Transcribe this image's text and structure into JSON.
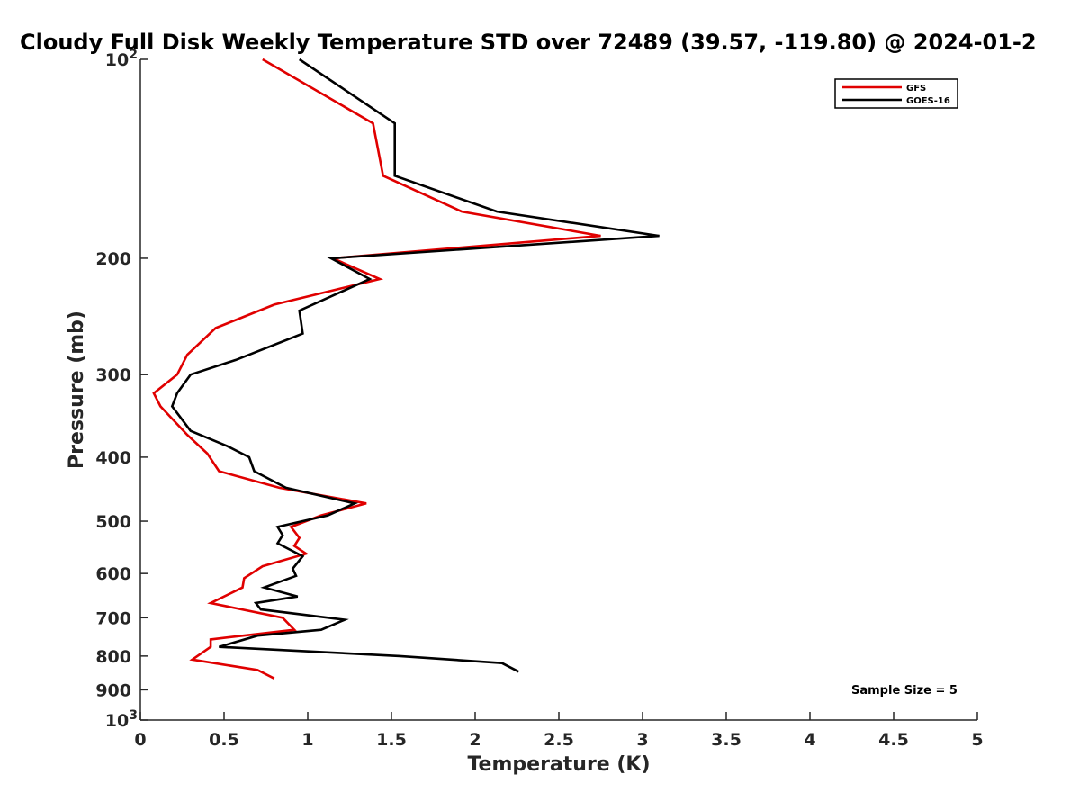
{
  "chart_data": {
    "type": "line",
    "title": "Cloudy Full Disk Weekly Temperature STD over 72489 (39.57, -119.80) @ 2024-01-2",
    "xlabel": "Temperature (K)",
    "ylabel": "Pressure (mb)",
    "xlim": [
      0,
      5
    ],
    "ylim": [
      100,
      1000
    ],
    "y_scale": "log",
    "y_reversed": true,
    "grid": false,
    "legend_position": "top-right",
    "x_ticks": [
      "0",
      "0.5",
      "1",
      "1.5",
      "2",
      "2.5",
      "3",
      "3.5",
      "4",
      "4.5",
      "5"
    ],
    "y_ticks": [
      {
        "value": 100,
        "label": "10",
        "sup": "2"
      },
      {
        "value": 200,
        "label": "200",
        "sup": ""
      },
      {
        "value": 300,
        "label": "300",
        "sup": ""
      },
      {
        "value": 400,
        "label": "400",
        "sup": ""
      },
      {
        "value": 500,
        "label": "500",
        "sup": ""
      },
      {
        "value": 600,
        "label": "600",
        "sup": ""
      },
      {
        "value": 700,
        "label": "700",
        "sup": ""
      },
      {
        "value": 800,
        "label": "800",
        "sup": ""
      },
      {
        "value": 900,
        "label": "900",
        "sup": ""
      },
      {
        "value": 1000,
        "label": "10",
        "sup": "3"
      }
    ],
    "series": [
      {
        "name": "GFS",
        "color": "#e00000",
        "points": [
          [
            0.73,
            100
          ],
          [
            1.39,
            125
          ],
          [
            1.45,
            150
          ],
          [
            1.92,
            170
          ],
          [
            2.75,
            185
          ],
          [
            1.15,
            200
          ],
          [
            1.43,
            215
          ],
          [
            0.8,
            235
          ],
          [
            0.45,
            255
          ],
          [
            0.28,
            280
          ],
          [
            0.22,
            300
          ],
          [
            0.08,
            320
          ],
          [
            0.12,
            335
          ],
          [
            0.28,
            370
          ],
          [
            0.4,
            395
          ],
          [
            0.47,
            420
          ],
          [
            0.83,
            445
          ],
          [
            1.35,
            470
          ],
          [
            1.08,
            490
          ],
          [
            0.9,
            510
          ],
          [
            0.95,
            530
          ],
          [
            0.92,
            545
          ],
          [
            0.99,
            560
          ],
          [
            0.73,
            585
          ],
          [
            0.62,
            610
          ],
          [
            0.61,
            630
          ],
          [
            0.42,
            665
          ],
          [
            0.85,
            700
          ],
          [
            0.92,
            730
          ],
          [
            0.42,
            755
          ],
          [
            0.42,
            775
          ],
          [
            0.31,
            810
          ],
          [
            0.7,
            840
          ],
          [
            0.8,
            865
          ]
        ]
      },
      {
        "name": "GOES-16",
        "color": "#000000",
        "points": [
          [
            0.95,
            100
          ],
          [
            1.52,
            125
          ],
          [
            1.52,
            150
          ],
          [
            2.13,
            170
          ],
          [
            3.1,
            185
          ],
          [
            1.14,
            200
          ],
          [
            1.37,
            215
          ],
          [
            0.95,
            240
          ],
          [
            0.97,
            260
          ],
          [
            0.57,
            285
          ],
          [
            0.3,
            300
          ],
          [
            0.22,
            320
          ],
          [
            0.19,
            335
          ],
          [
            0.3,
            365
          ],
          [
            0.52,
            385
          ],
          [
            0.65,
            400
          ],
          [
            0.68,
            420
          ],
          [
            0.87,
            445
          ],
          [
            1.28,
            470
          ],
          [
            1.12,
            490
          ],
          [
            0.82,
            510
          ],
          [
            0.85,
            525
          ],
          [
            0.82,
            540
          ],
          [
            0.97,
            565
          ],
          [
            0.91,
            590
          ],
          [
            0.93,
            605
          ],
          [
            0.74,
            630
          ],
          [
            0.94,
            650
          ],
          [
            0.69,
            665
          ],
          [
            0.72,
            680
          ],
          [
            1.22,
            705
          ],
          [
            1.08,
            730
          ],
          [
            0.7,
            745
          ],
          [
            0.47,
            775
          ],
          [
            1.55,
            800
          ],
          [
            2.16,
            820
          ],
          [
            2.26,
            845
          ]
        ]
      }
    ],
    "annotation": "Sample Size = 5"
  }
}
